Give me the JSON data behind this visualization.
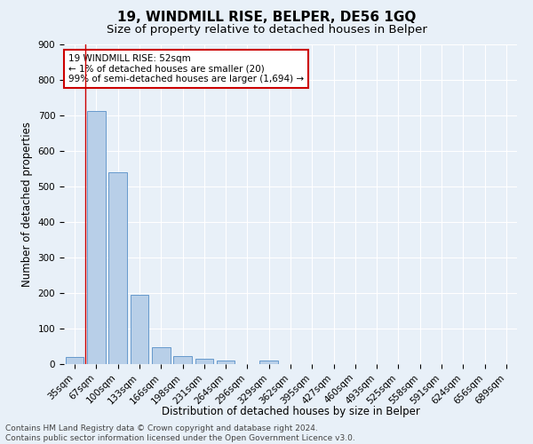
{
  "title": "19, WINDMILL RISE, BELPER, DE56 1GQ",
  "subtitle": "Size of property relative to detached houses in Belper",
  "xlabel": "Distribution of detached houses by size in Belper",
  "ylabel": "Number of detached properties",
  "categories": [
    "35sqm",
    "67sqm",
    "100sqm",
    "133sqm",
    "166sqm",
    "198sqm",
    "231sqm",
    "264sqm",
    "296sqm",
    "329sqm",
    "362sqm",
    "395sqm",
    "427sqm",
    "460sqm",
    "493sqm",
    "525sqm",
    "558sqm",
    "591sqm",
    "624sqm",
    "656sqm",
    "689sqm"
  ],
  "values": [
    20,
    713,
    540,
    195,
    47,
    22,
    16,
    11,
    0,
    10,
    0,
    0,
    0,
    0,
    0,
    0,
    0,
    0,
    0,
    0,
    0
  ],
  "bar_color": "#b8cfe8",
  "bar_edge_color": "#6699cc",
  "bg_color": "#e8f0f8",
  "grid_color": "#ffffff",
  "annotation_text": "19 WINDMILL RISE: 52sqm\n← 1% of detached houses are smaller (20)\n99% of semi-detached houses are larger (1,694) →",
  "annotation_box_color": "#ffffff",
  "annotation_box_edge": "#cc0000",
  "red_line_color": "#cc0000",
  "ylim": [
    0,
    900
  ],
  "yticks": [
    0,
    100,
    200,
    300,
    400,
    500,
    600,
    700,
    800,
    900
  ],
  "footer": "Contains HM Land Registry data © Crown copyright and database right 2024.\nContains public sector information licensed under the Open Government Licence v3.0.",
  "title_fontsize": 11,
  "subtitle_fontsize": 9.5,
  "axis_label_fontsize": 8.5,
  "tick_fontsize": 7.5,
  "footer_fontsize": 6.5,
  "annotation_fontsize": 7.5
}
